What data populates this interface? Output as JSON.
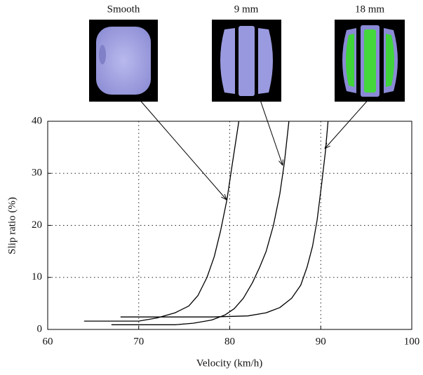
{
  "chart_data": {
    "type": "line",
    "x_label": "Velocity (km/h)",
    "y_label": "Slip ratio (%)",
    "xlim": [
      60,
      100
    ],
    "xticks": [
      60,
      70,
      80,
      90,
      100
    ],
    "ylim": [
      0,
      40
    ],
    "yticks": [
      0,
      10,
      20,
      30,
      40
    ],
    "grid": true,
    "series": [
      {
        "name": "Smooth",
        "color": "#000000",
        "x": [
          64,
          70,
          72,
          74,
          75.5,
          76.5,
          77.5,
          78.3,
          79,
          79.7,
          80.3,
          81
        ],
        "values": [
          1.6,
          1.6,
          2.2,
          3.2,
          4.5,
          6.5,
          10,
          14,
          19,
          25,
          32,
          40
        ]
      },
      {
        "name": "9 mm",
        "color": "#000000",
        "x": [
          67,
          74,
          76,
          78,
          79.5,
          80.5,
          81.5,
          82.5,
          83.3,
          84,
          84.8,
          85.5,
          86,
          86.5
        ],
        "values": [
          0.9,
          0.9,
          1.2,
          1.8,
          2.8,
          4,
          6,
          9,
          12,
          15,
          20,
          26,
          32,
          40
        ]
      },
      {
        "name": "18 mm",
        "color": "#000000",
        "x": [
          68,
          78,
          82,
          84,
          85.5,
          86.8,
          87.8,
          88.5,
          89.1,
          89.6,
          90.1,
          90.5,
          90.8
        ],
        "values": [
          2.4,
          2.4,
          2.6,
          3.2,
          4.2,
          6,
          8.5,
          12,
          16,
          21,
          28,
          34,
          40
        ]
      }
    ]
  }
}
